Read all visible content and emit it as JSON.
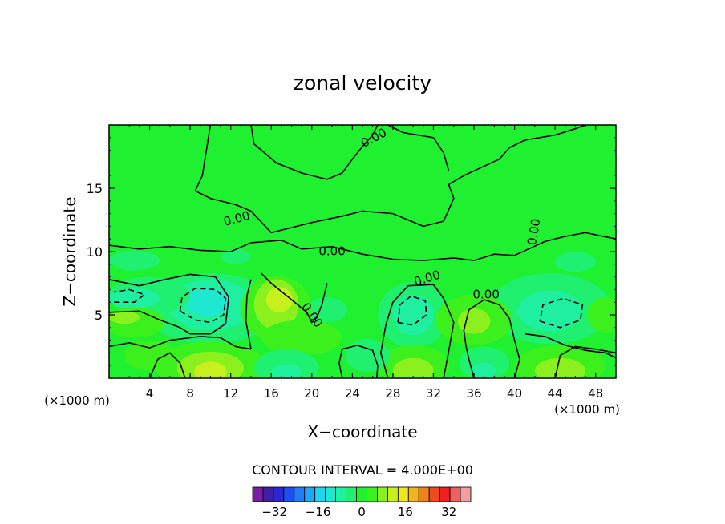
{
  "chart_data": {
    "type": "heatmap",
    "title": "zonal velocity",
    "xlabel": "X−coordinate",
    "ylabel": "Z−coordinate",
    "x_unit_label": "(×1000 m)",
    "x_unit_label_left": "(×1000 m)",
    "xlim": [
      0,
      50
    ],
    "ylim": [
      0,
      20
    ],
    "x_ticks": [
      4,
      8,
      12,
      16,
      20,
      24,
      28,
      32,
      36,
      40,
      44,
      48
    ],
    "y_ticks": [
      5,
      10,
      15
    ],
    "contour_interval_text": "CONTOUR INTERVAL = 4.000E+00",
    "contour_labels": [
      "0.00",
      "0.00",
      "0.00",
      "0.00",
      "0.00",
      "0.00",
      "0.00"
    ],
    "colorbar": {
      "tick_labels": [
        "−32",
        "−16",
        "0",
        "16",
        "32"
      ],
      "tick_values": [
        -32,
        -16,
        0,
        16,
        32
      ],
      "levels": [
        -40,
        -36,
        -32,
        -28,
        -24,
        -20,
        -16,
        -12,
        -8,
        -4,
        0,
        4,
        8,
        12,
        16,
        20,
        24,
        28,
        32,
        36,
        40
      ],
      "colors": [
        "#7a1ea8",
        "#3f1fa8",
        "#2a2ad4",
        "#1f4ff0",
        "#1f7df7",
        "#1fa8f7",
        "#1fd4f0",
        "#1fe8d0",
        "#1ff0a0",
        "#1ff070",
        "#1ff030",
        "#3cf01e",
        "#8cf01e",
        "#c8f01e",
        "#f0e61e",
        "#f0b41e",
        "#f0821e",
        "#f04b1e",
        "#f02020",
        "#f06060",
        "#f0a0a0"
      ]
    },
    "field_samples": {
      "x": [
        0,
        5,
        10,
        15,
        20,
        25,
        30,
        35,
        40,
        45,
        50
      ],
      "z": [
        1,
        3,
        5,
        7,
        9,
        12,
        16,
        19
      ],
      "u": [
        [
          2,
          6,
          4,
          10,
          6,
          5,
          9,
          2,
          -4,
          8,
          4
        ],
        [
          4,
          3,
          -2,
          8,
          5,
          1,
          -2,
          5,
          3,
          6,
          2
        ],
        [
          6,
          -2,
          -8,
          10,
          4,
          0,
          -6,
          6,
          -3,
          -4,
          3
        ],
        [
          -2,
          -4,
          -6,
          4,
          -1,
          0,
          -5,
          -1,
          -4,
          -6,
          -3
        ],
        [
          -1,
          -1,
          -2,
          1,
          0,
          0,
          -1,
          0,
          -2,
          -3,
          -2
        ],
        [
          0,
          0,
          0,
          0,
          0,
          0,
          0,
          0,
          0,
          0,
          0
        ],
        [
          0,
          0,
          0,
          0,
          0,
          0,
          0,
          0,
          0,
          0,
          0
        ],
        [
          0,
          0,
          0,
          0,
          0,
          0,
          0,
          0,
          0,
          0,
          0
        ]
      ]
    },
    "grid": false
  }
}
